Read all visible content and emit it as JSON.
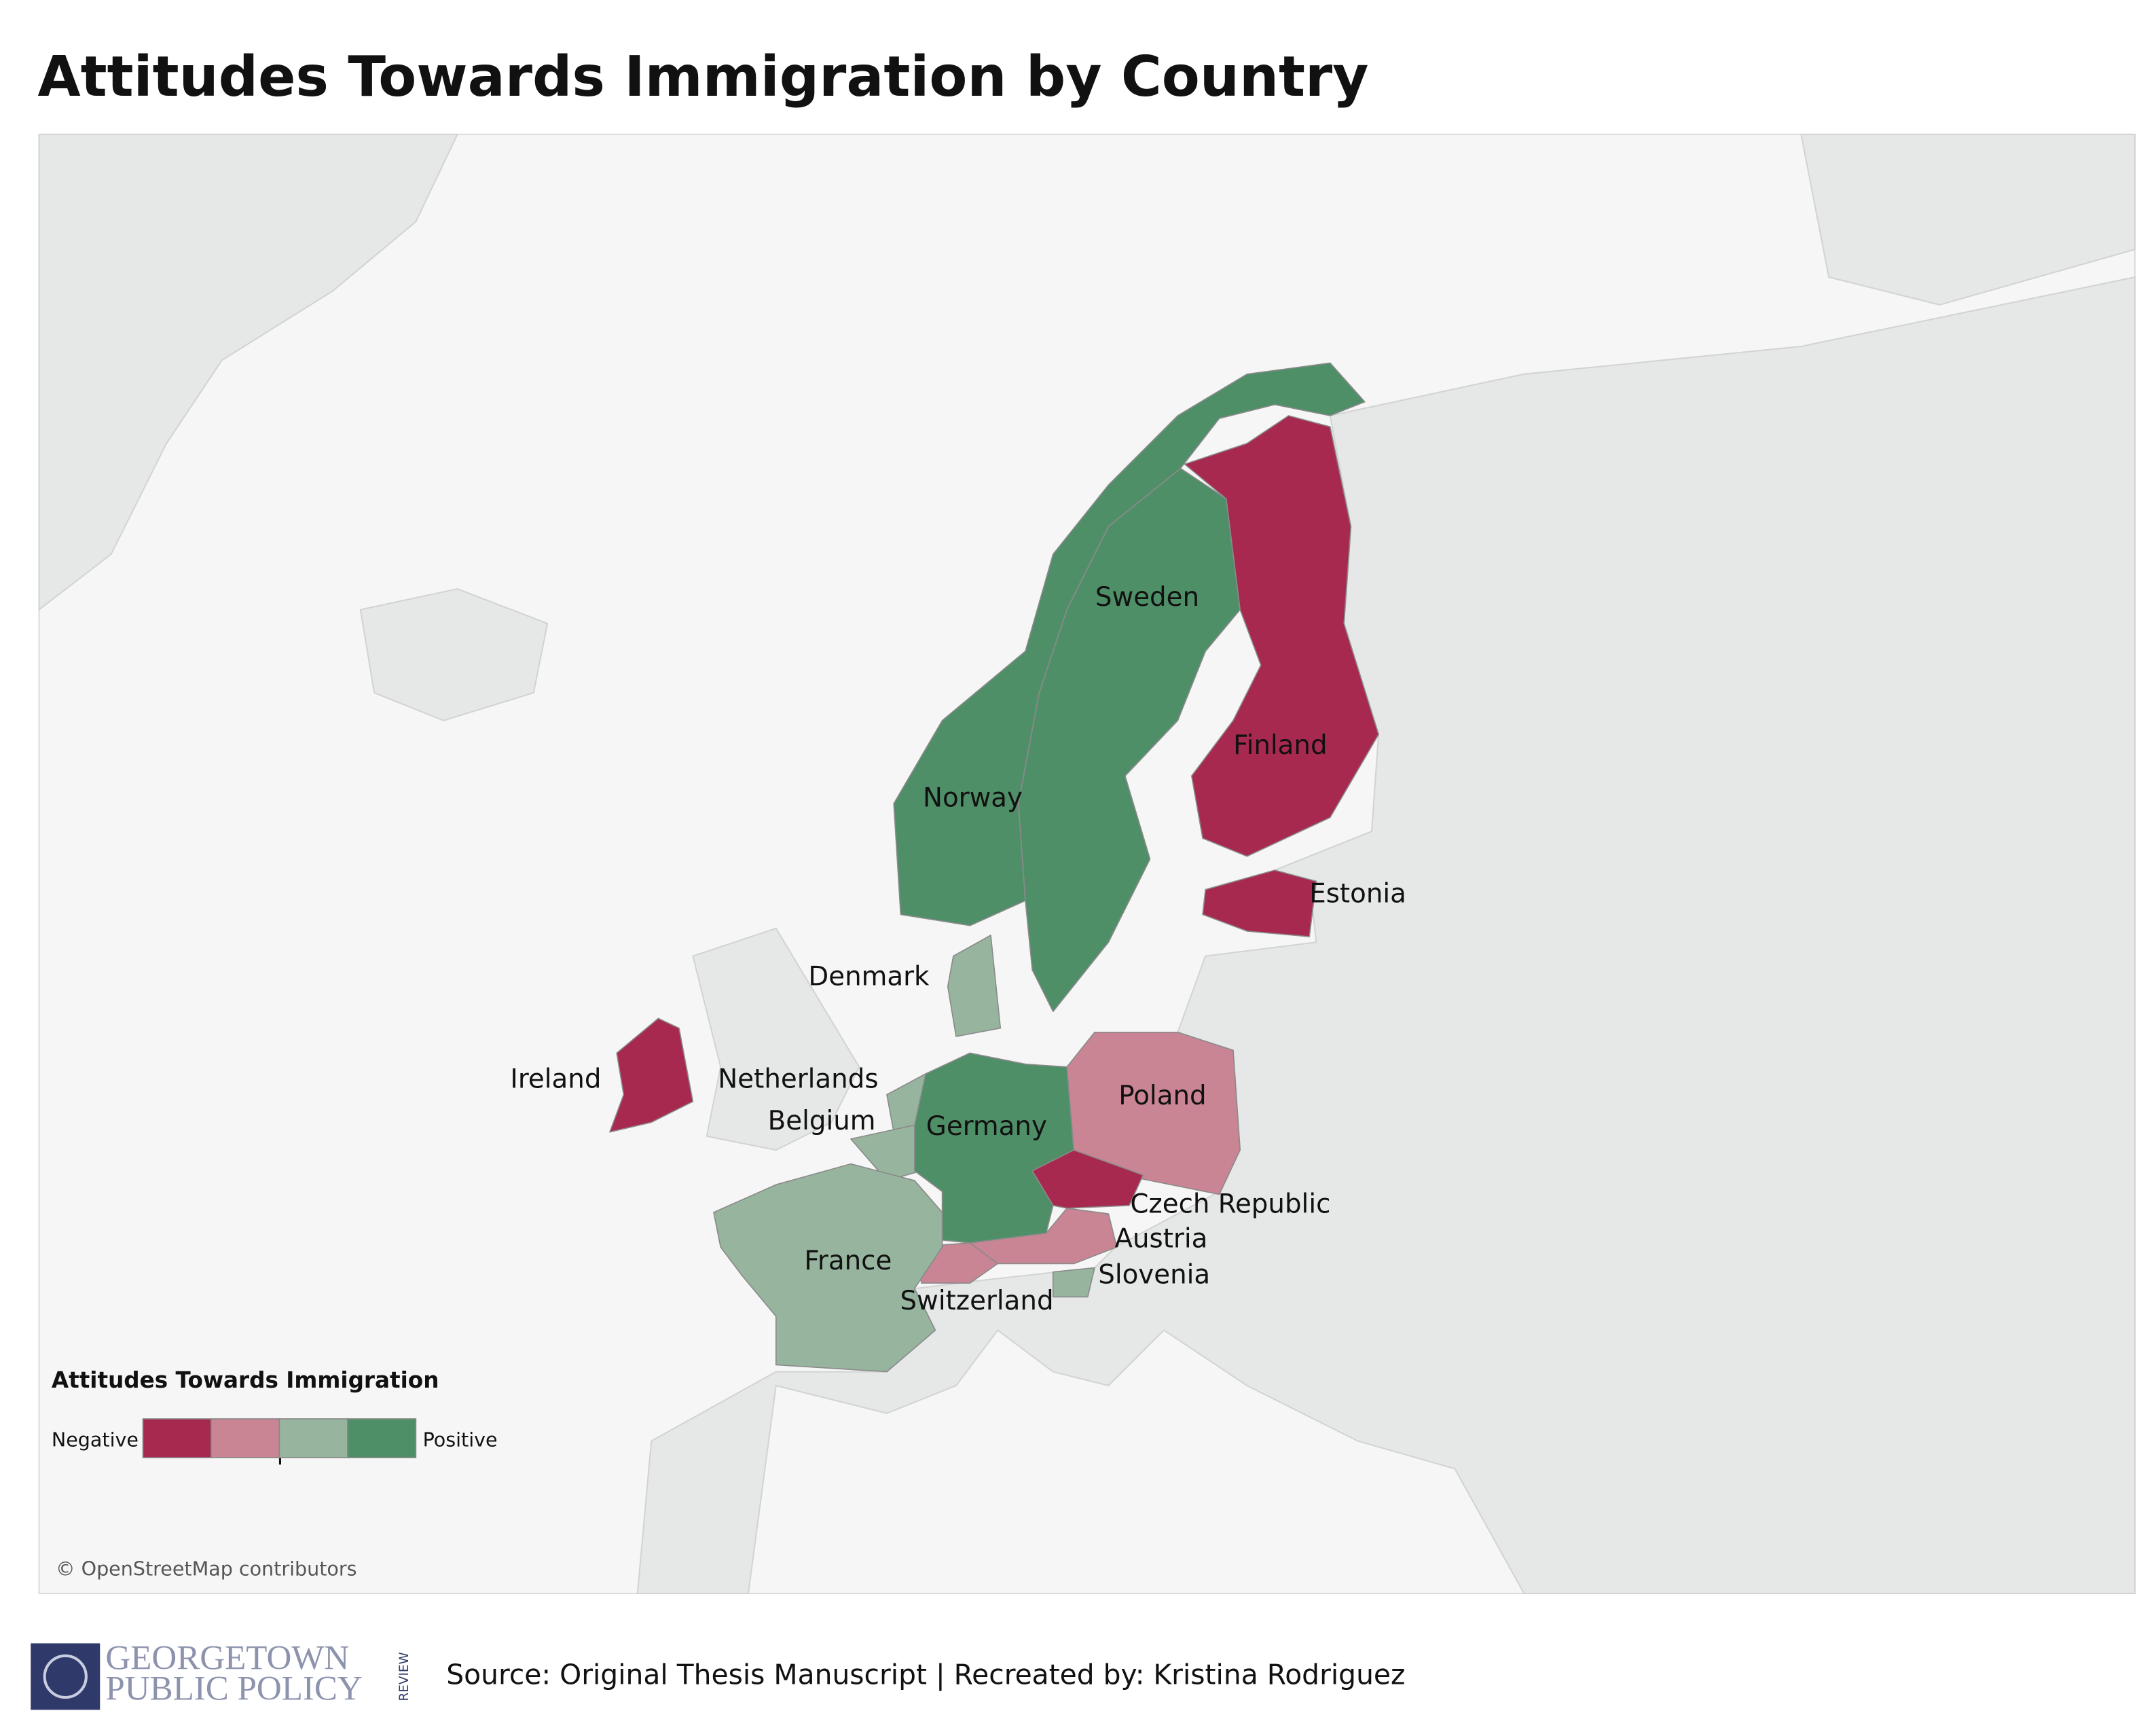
{
  "title": "Attitudes Towards Immigration by Country",
  "map": {
    "countries": [
      {
        "name": "Norway",
        "color": "#4f8f68"
      },
      {
        "name": "Sweden",
        "color": "#4f8f68"
      },
      {
        "name": "Finland",
        "color": "#a8294f"
      },
      {
        "name": "Estonia",
        "color": "#a8294f"
      },
      {
        "name": "Denmark",
        "color": "#97b59e"
      },
      {
        "name": "Ireland",
        "color": "#a8294f"
      },
      {
        "name": "Netherlands",
        "color": "#97b59e"
      },
      {
        "name": "Belgium",
        "color": "#97b59e"
      },
      {
        "name": "Germany",
        "color": "#4f8f68"
      },
      {
        "name": "Poland",
        "color": "#c98593"
      },
      {
        "name": "Czech Republic",
        "color": "#a8294f"
      },
      {
        "name": "Austria",
        "color": "#c98593"
      },
      {
        "name": "Switzerland",
        "color": "#c98593"
      },
      {
        "name": "Slovenia",
        "color": "#97b59e"
      },
      {
        "name": "France",
        "color": "#97b59e"
      }
    ],
    "attribution": "© OpenStreetMap contributors"
  },
  "legend": {
    "title": "Attitudes Towards Immigration",
    "low_label": "Negative",
    "high_label": "Positive",
    "colors": [
      "#a8294f",
      "#c98593",
      "#97b59e",
      "#4f8f68"
    ]
  },
  "footer": {
    "logo_line1": "GEORGETOWN",
    "logo_line2": "PUBLIC POLICY",
    "logo_side": "REVIEW",
    "source": "Source: Original Thesis Manuscript | Recreated by: Kristina Rodriguez"
  }
}
